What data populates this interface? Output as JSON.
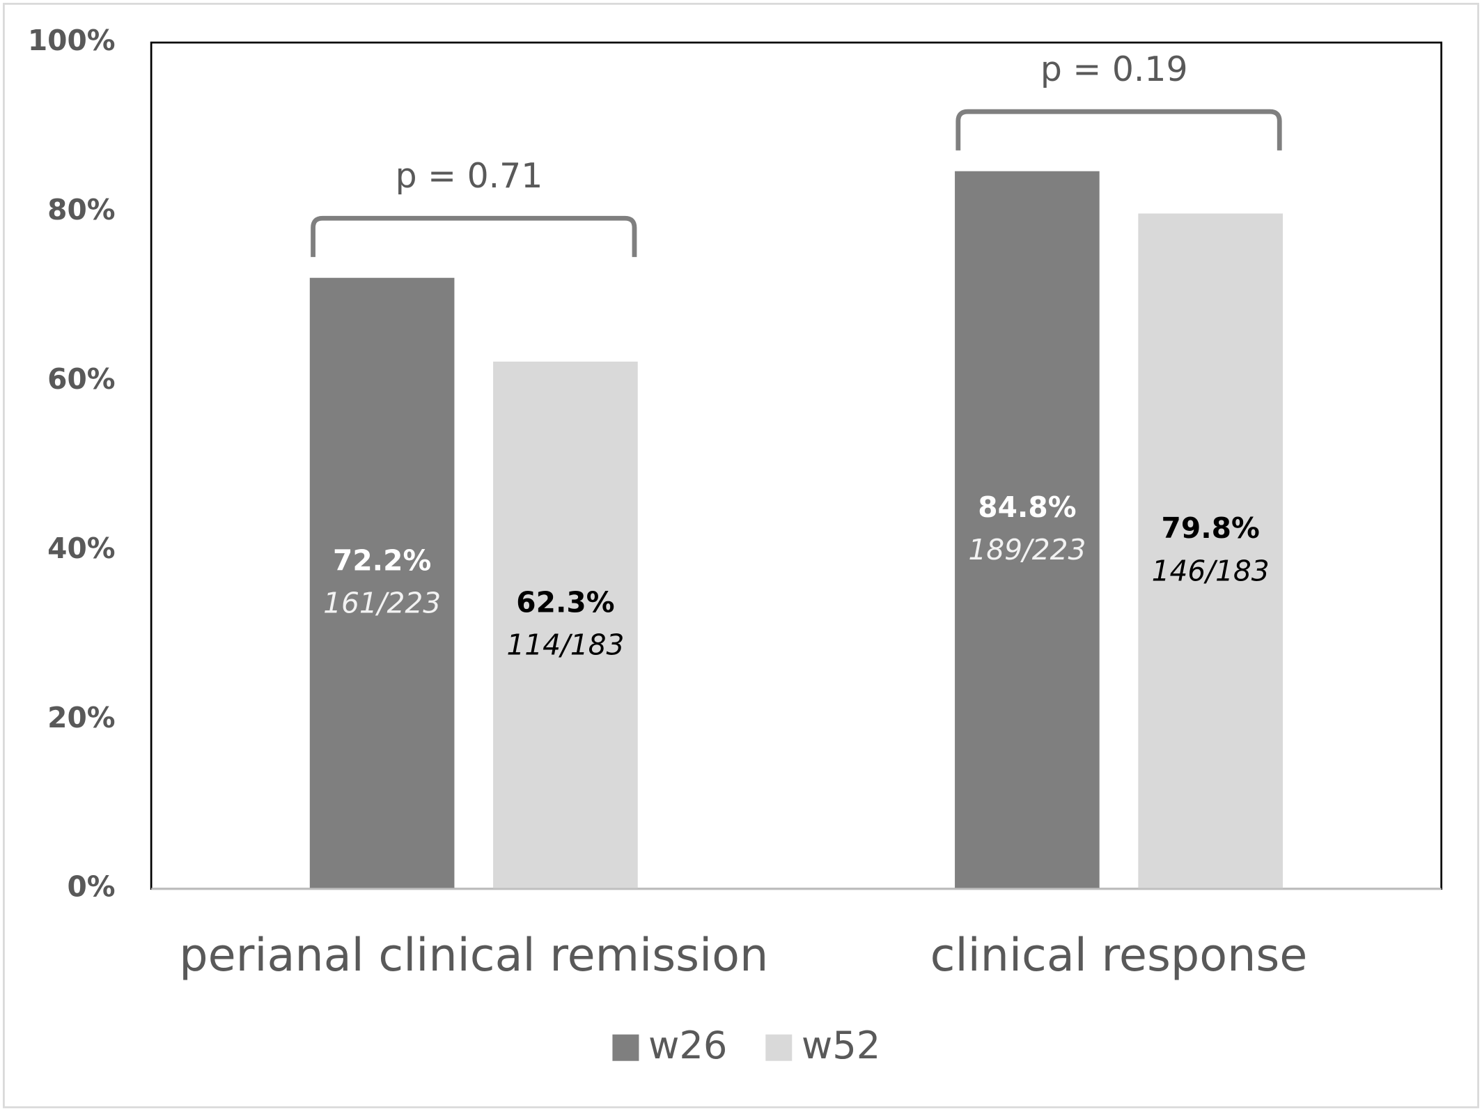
{
  "chart_data": {
    "type": "bar",
    "categories": [
      "perianal clinical remission",
      "clinical response"
    ],
    "series": [
      {
        "name": "w26",
        "color": "#7f7f7f",
        "values": [
          72.2,
          84.8
        ],
        "value_labels": [
          "72.2%",
          "84.8%"
        ],
        "fractions": [
          "161/223",
          "189/223"
        ]
      },
      {
        "name": "w52",
        "color": "#d9d9d9",
        "values": [
          62.3,
          79.8
        ],
        "value_labels": [
          "62.3%",
          "79.8%"
        ],
        "fractions": [
          "114/183",
          "146/183"
        ]
      }
    ],
    "annotations": [
      "p = 0.71",
      "p = 0.19"
    ],
    "ylim": [
      0,
      100
    ],
    "yticks": [
      {
        "value": 0,
        "label": "0%"
      },
      {
        "value": 20,
        "label": "20%"
      },
      {
        "value": 40,
        "label": "40%"
      },
      {
        "value": 60,
        "label": "60%"
      },
      {
        "value": 80,
        "label": "80%"
      },
      {
        "value": 100,
        "label": "100%"
      }
    ],
    "grid": false,
    "legend": "bottom"
  }
}
